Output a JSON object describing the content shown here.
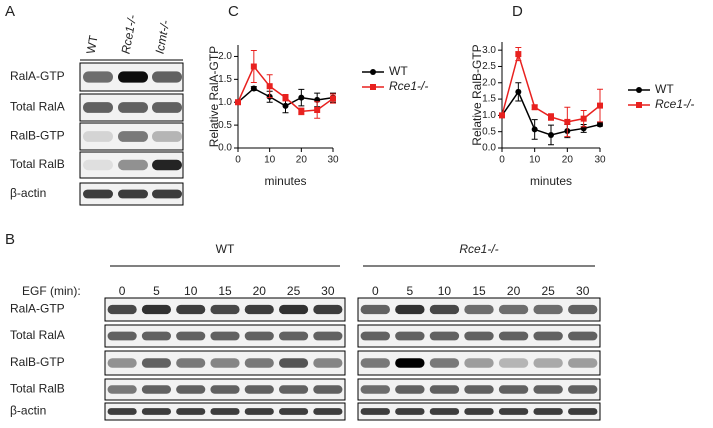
{
  "panel_labels": [
    "A",
    "B",
    "C",
    "D"
  ],
  "blot_a": {
    "columns": [
      "WT",
      "Rce1-/-",
      "Icmt-/-"
    ],
    "rows": [
      "RalA-GTP",
      "Total RalA",
      "RalB-GTP",
      "Total RalB",
      "β-actin"
    ]
  },
  "blot_b": {
    "groups": [
      "WT",
      "Rce1-/-"
    ],
    "time_label": "EGF (min):",
    "times": [
      0,
      5,
      10,
      15,
      20,
      25,
      30
    ],
    "rows": [
      "RalA-GTP",
      "Total RalA",
      "RalB-GTP",
      "Total RalB",
      "β-actin"
    ]
  },
  "chart_data": [
    {
      "type": "line",
      "y_label": "Relative RalA-GTP",
      "x_label": "minutes",
      "x": [
        0,
        5,
        10,
        15,
        20,
        25,
        30
      ],
      "series": [
        {
          "name": "WT",
          "color": "#000000",
          "marker": "circle",
          "values": [
            1.0,
            1.3,
            1.12,
            0.92,
            1.1,
            1.05,
            1.1
          ],
          "errors": [
            0,
            0.04,
            0.12,
            0.15,
            0.18,
            0.15,
            0.1
          ]
        },
        {
          "name": "Rce1-/-",
          "color": "#e8211f",
          "marker": "square",
          "values": [
            1.0,
            1.78,
            1.35,
            1.1,
            0.8,
            0.83,
            1.08
          ],
          "errors": [
            0,
            0.35,
            0.25,
            0.07,
            0.07,
            0.18,
            0.1
          ]
        }
      ],
      "xlim": [
        0,
        30
      ],
      "xticks": [
        0,
        10,
        20,
        30
      ],
      "ylim": [
        0,
        2.25
      ],
      "yticks": [
        {
          "value": 0,
          "label": "0.0"
        },
        0.5,
        {
          "value": 1,
          "label": "1.0"
        },
        1.5,
        {
          "value": 2,
          "label": "2.0"
        }
      ]
    },
    {
      "type": "line",
      "y_label": "Relative RalB-GTP",
      "x_label": "minutes",
      "x": [
        0,
        5,
        10,
        15,
        20,
        25,
        30
      ],
      "series": [
        {
          "name": "WT",
          "color": "#000000",
          "marker": "circle",
          "values": [
            1.0,
            1.72,
            0.57,
            0.4,
            0.52,
            0.6,
            0.72
          ],
          "errors": [
            0,
            0.28,
            0.3,
            0.3,
            0.2,
            0.12,
            0.05
          ]
        },
        {
          "name": "Rce1-/-",
          "color": "#e8211f",
          "marker": "square",
          "values": [
            1.0,
            2.88,
            1.25,
            0.95,
            0.8,
            0.9,
            1.3
          ],
          "errors": [
            0,
            0.2,
            0.07,
            0.1,
            0.45,
            0.25,
            0.5
          ]
        }
      ],
      "xlim": [
        0,
        30
      ],
      "xticks": [
        0,
        10,
        20,
        30
      ],
      "ylim": [
        0,
        3.25
      ],
      "yticks": [
        {
          "value": 0,
          "label": "0.0"
        },
        0.5,
        {
          "value": 1,
          "label": "1.0"
        },
        1.5,
        {
          "value": 2,
          "label": "2.0"
        },
        2.5,
        {
          "value": 3,
          "label": "3.0"
        }
      ]
    }
  ]
}
